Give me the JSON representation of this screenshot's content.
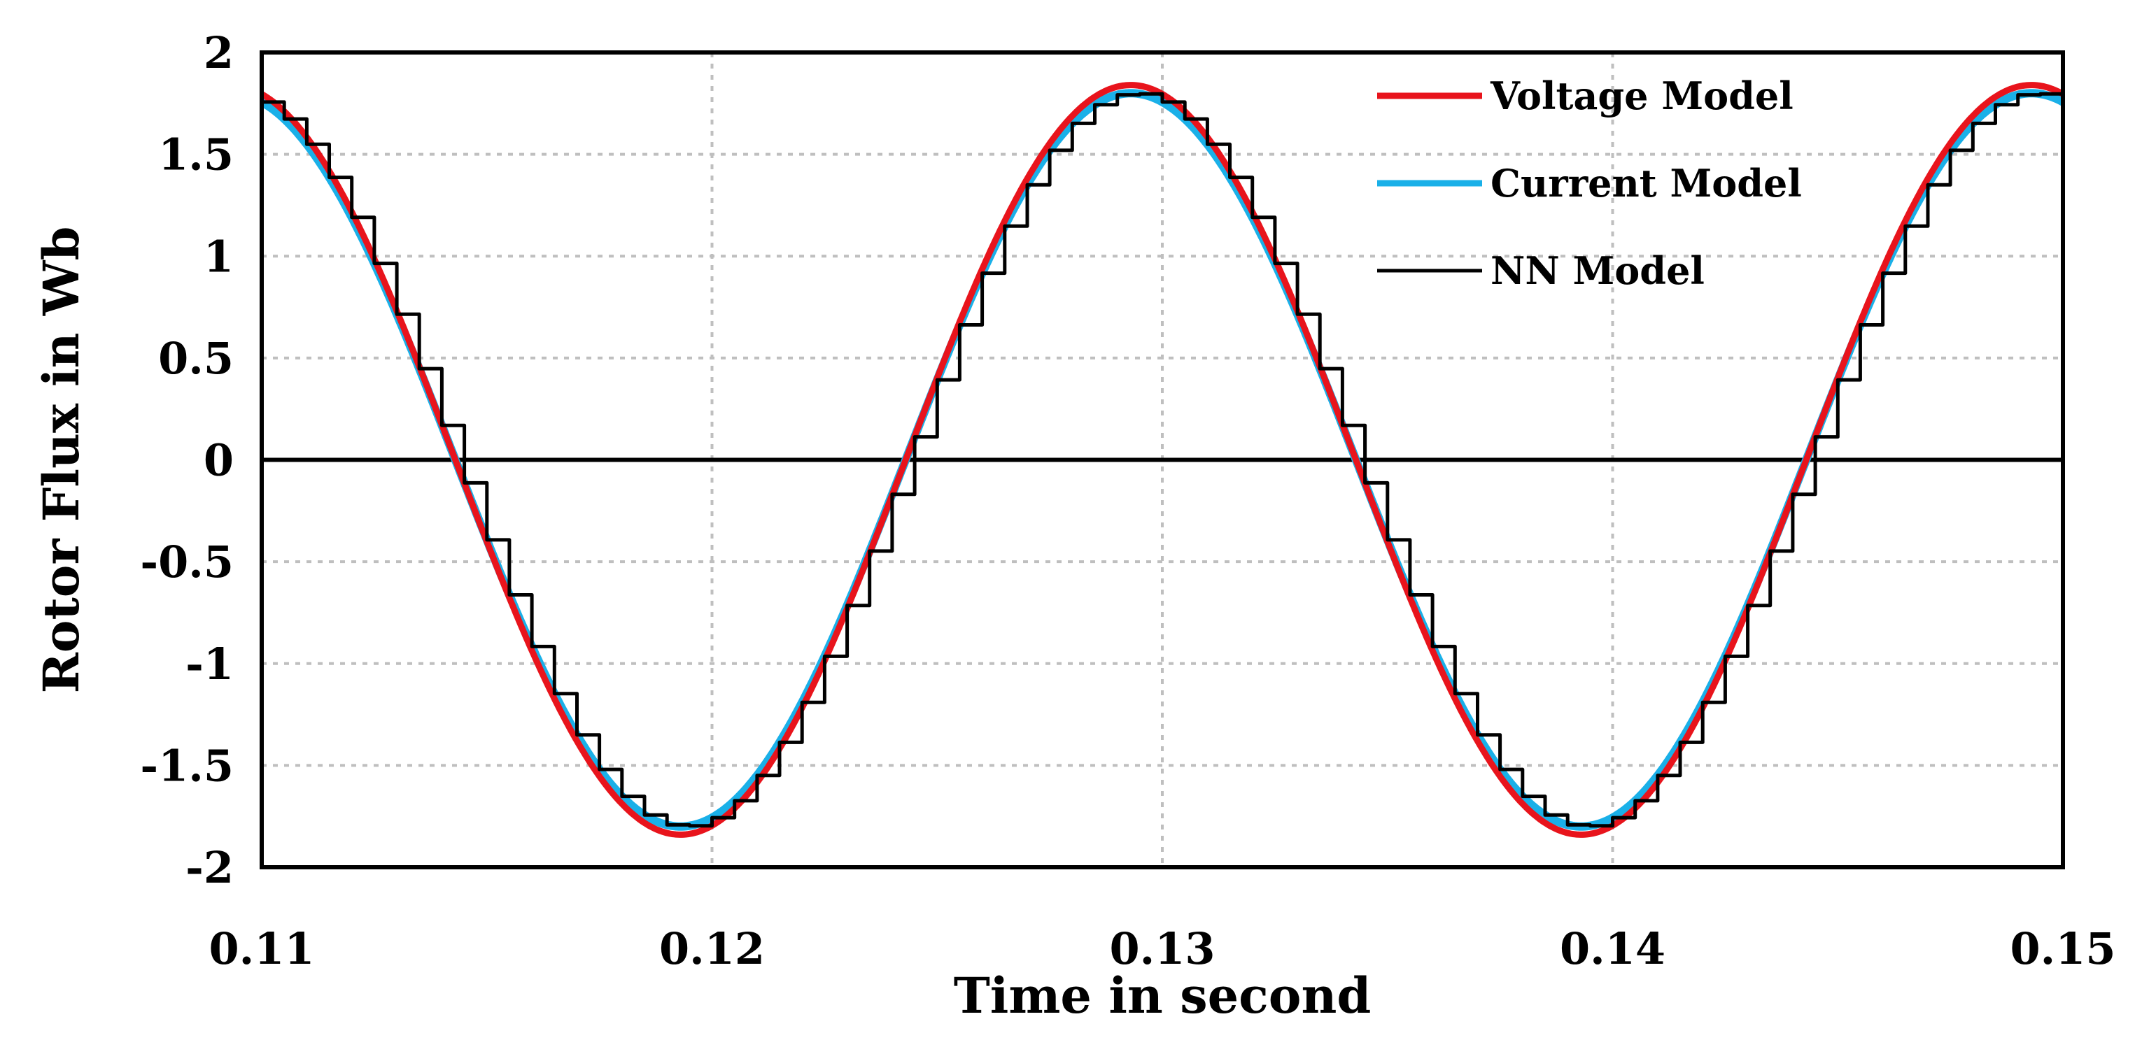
{
  "chart_data": {
    "type": "line",
    "title": "",
    "xlabel": "Time in second",
    "ylabel": "Rotor Flux in Wb",
    "xlim": [
      0.11,
      0.15
    ],
    "ylim": [
      -2,
      2
    ],
    "x_ticks": [
      0.11,
      0.12,
      0.13,
      0.14,
      0.15
    ],
    "x_tick_labels": [
      "0.11",
      "0.12",
      "0.13",
      "0.14",
      "0.15"
    ],
    "y_ticks": [
      2,
      1.5,
      1,
      0.5,
      0,
      -0.5,
      -1,
      -1.5,
      -2
    ],
    "y_tick_labels": [
      "2",
      "1.5",
      "1",
      "0.5",
      "0",
      "-0.5",
      "-1",
      "-1.5",
      "-2"
    ],
    "grid": true,
    "legend_position": "top-right",
    "series": [
      {
        "name": "Voltage Model",
        "color": "#e8141c",
        "style": "smooth",
        "amplitude": 1.84,
        "frequency_hz": 50,
        "zero_crossing_down": 0.1143,
        "x": [
          0.11,
          0.1114,
          0.1143,
          0.1193,
          0.1243,
          0.1293,
          0.1343,
          0.1393,
          0.1443,
          0.1493,
          0.15
        ],
        "y": [
          1.8,
          1.35,
          0.0,
          -1.84,
          0.0,
          1.84,
          0.0,
          -1.84,
          0.0,
          1.84,
          1.82
        ]
      },
      {
        "name": "Current Model",
        "color": "#1ab0e8",
        "style": "smooth",
        "amplitude": 1.8,
        "frequency_hz": 50,
        "zero_crossing_down": 0.1143,
        "x": [
          0.11,
          0.1143,
          0.1193,
          0.1243,
          0.1293,
          0.1343,
          0.1393,
          0.1443,
          0.1493,
          0.15
        ],
        "y": [
          1.77,
          0.0,
          -1.8,
          0.0,
          1.8,
          0.0,
          -1.8,
          0.0,
          1.8,
          1.79
        ]
      },
      {
        "name": "NN Model",
        "color": "#000000",
        "style": "step",
        "amplitude": 1.8,
        "frequency_hz": 50,
        "zero_crossing_down": 0.1143,
        "sample_period": 0.0005,
        "x": [
          0.11,
          0.1143,
          0.1193,
          0.1243,
          0.1293,
          0.1343,
          0.1393,
          0.1443,
          0.1493,
          0.15
        ],
        "y": [
          1.77,
          0.0,
          -1.8,
          0.0,
          1.8,
          0.0,
          -1.8,
          0.0,
          1.8,
          1.79
        ]
      }
    ]
  }
}
